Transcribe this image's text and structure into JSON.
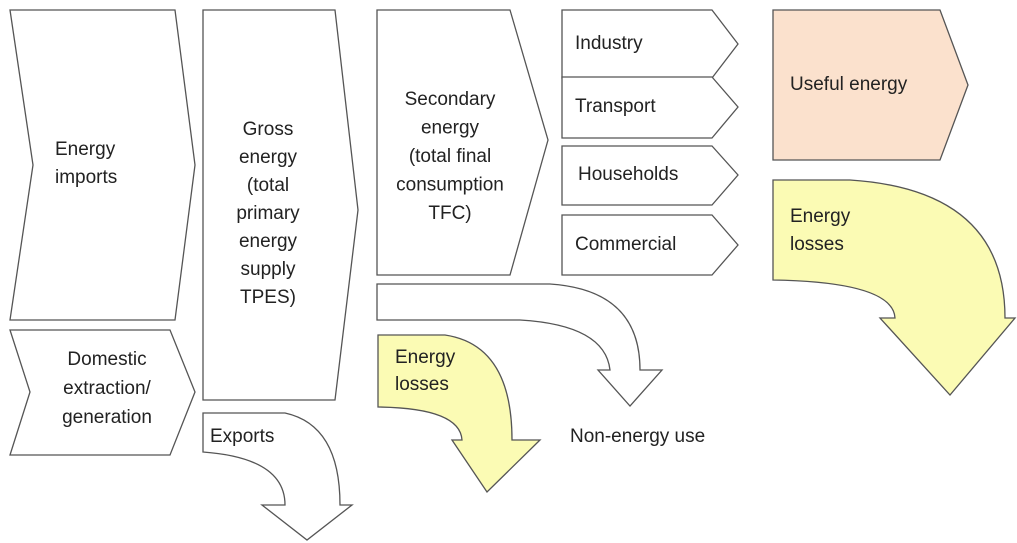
{
  "nodes": [
    {
      "lines": [
        "Energy",
        "imports"
      ]
    },
    {
      "lines": [
        "Domestic",
        "extraction/",
        "generation"
      ]
    },
    {
      "lines": [
        "Gross",
        "energy",
        "(total",
        "primary",
        "energy",
        "supply",
        "TPES)"
      ]
    },
    {
      "lines": [
        "Exports"
      ]
    },
    {
      "lines": [
        "Secondary",
        "energy",
        "(total final",
        "consumption",
        "TFC)"
      ]
    },
    {
      "lines": [
        "Industry"
      ]
    },
    {
      "lines": [
        "Transport"
      ]
    },
    {
      "lines": [
        "Households"
      ]
    },
    {
      "lines": [
        "Commercial"
      ]
    },
    {
      "lines": [
        "Energy",
        "losses"
      ]
    },
    {
      "lines": [
        "Non-energy use"
      ]
    },
    {
      "lines": [
        "Useful energy"
      ]
    },
    {
      "lines": [
        "Energy",
        "losses"
      ]
    }
  ]
}
